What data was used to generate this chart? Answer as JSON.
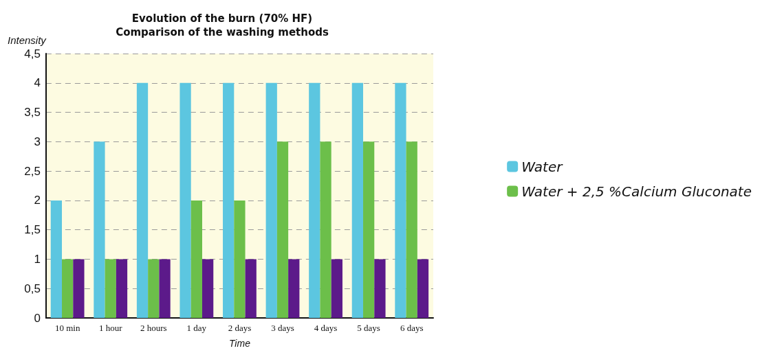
{
  "chart_data": {
    "type": "bar",
    "title": "Evolution of the burn (70% HF)\nComparison of the washing methods",
    "xlabel": "Time",
    "ylabel": "Intensity",
    "categories": [
      "10 min",
      "1 hour",
      "2 hours",
      "1 day",
      "2 days",
      "3 days",
      "4 days",
      "5 days",
      "6 days"
    ],
    "series": [
      {
        "name": "Water",
        "color": "#5cc6e0",
        "values": [
          2,
          3,
          4,
          4,
          4,
          4,
          4,
          4,
          4
        ]
      },
      {
        "name": "Water + 2,5 %Calcium Gluconate",
        "color": "#6cbf4a",
        "values": [
          1,
          1,
          1,
          2,
          2,
          3,
          3,
          3,
          3
        ]
      },
      {
        "color": "#5c1a8a",
        "values": [
          1,
          1,
          1,
          1,
          1,
          1,
          1,
          1,
          1
        ]
      }
    ],
    "ylim": [
      0,
      4.5
    ],
    "yticks": [
      0,
      {
        "value": 0.5,
        "label": "0,5"
      },
      1,
      {
        "value": 1.5,
        "label": "1,5"
      },
      2,
      {
        "value": 2.5,
        "label": "2,5"
      },
      3,
      {
        "value": 3.5,
        "label": "3,5"
      },
      4,
      {
        "value": 4.5,
        "label": "4,5"
      }
    ],
    "grid": "y",
    "legend": "right"
  }
}
